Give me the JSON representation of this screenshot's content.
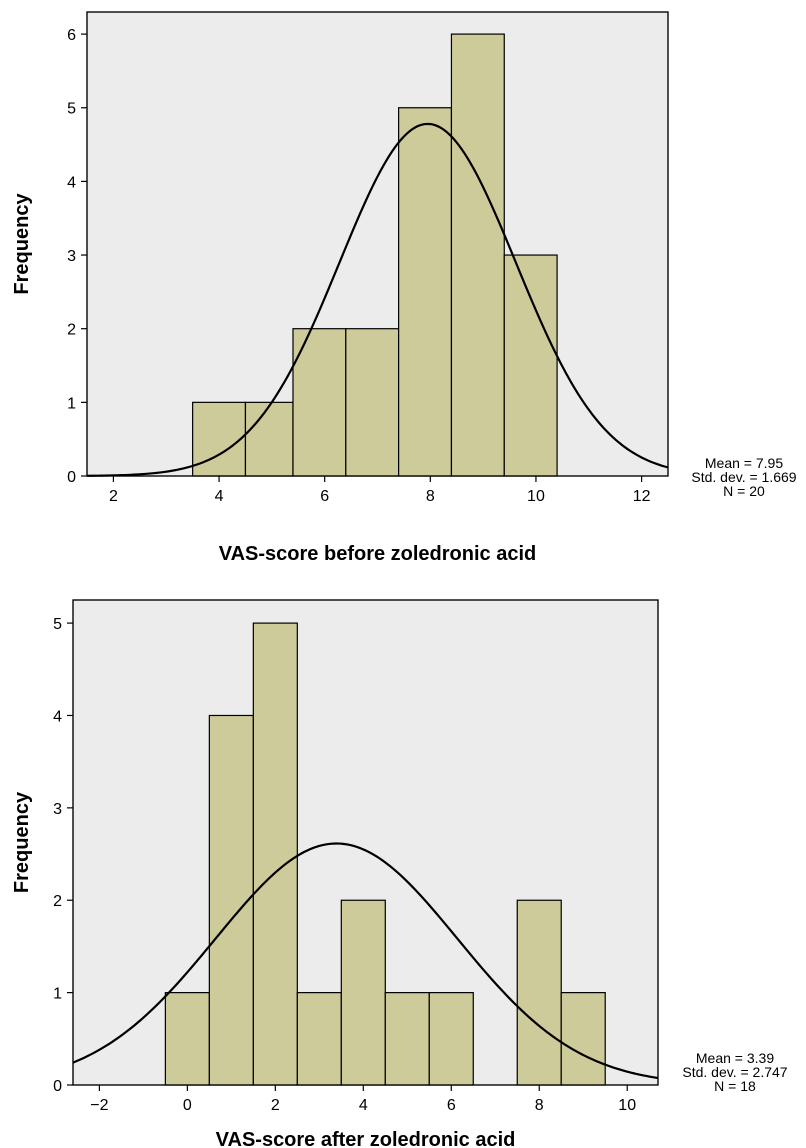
{
  "chart_data": [
    {
      "type": "bar",
      "subtype": "histogram",
      "xlabel": "VAS-score before zoledronic acid",
      "ylabel": "Frequency",
      "xlim": [
        1.5,
        12.5
      ],
      "ylim": [
        0,
        6.3
      ],
      "xticks": [
        2,
        4,
        6,
        8,
        10,
        12
      ],
      "yticks": [
        0,
        1,
        2,
        3,
        4,
        5,
        6
      ],
      "bin_edges": [
        3.5,
        4.5,
        5.4,
        6.4,
        7.4,
        8.4,
        9.4,
        10.4
      ],
      "values": [
        1,
        1,
        2,
        2,
        5,
        6,
        3
      ],
      "normal_curve": {
        "mean": 7.95,
        "sd": 1.669,
        "n": 20
      },
      "stats": [
        "Mean = 7.95",
        "Std. dev. = 1.669",
        "N = 20"
      ],
      "bar_color": "#cccb99",
      "grid": false
    },
    {
      "type": "bar",
      "subtype": "histogram",
      "xlabel": "VAS-score after zoledronic acid",
      "ylabel": "Frequency",
      "xlim": [
        -2.6,
        10.7
      ],
      "ylim": [
        0,
        5.25
      ],
      "xticks": [
        -2,
        0,
        2,
        4,
        6,
        8,
        10
      ],
      "xtick_labels": [
        "−2",
        "0",
        "2",
        "4",
        "6",
        "8",
        "10"
      ],
      "yticks": [
        0,
        1,
        2,
        3,
        4,
        5
      ],
      "bin_edges": [
        -0.5,
        0.5,
        1.5,
        2.5,
        3.5,
        4.5,
        5.5,
        6.5,
        7.5,
        8.5,
        9.5
      ],
      "values": [
        1,
        4,
        5,
        1,
        2,
        1,
        1,
        0,
        2,
        1
      ],
      "normal_curve": {
        "mean": 3.39,
        "sd": 2.747,
        "n": 18
      },
      "stats": [
        "Mean = 3.39",
        "Std. dev. = 2.747",
        "N = 18"
      ],
      "bar_color": "#cccb99",
      "grid": false
    }
  ]
}
